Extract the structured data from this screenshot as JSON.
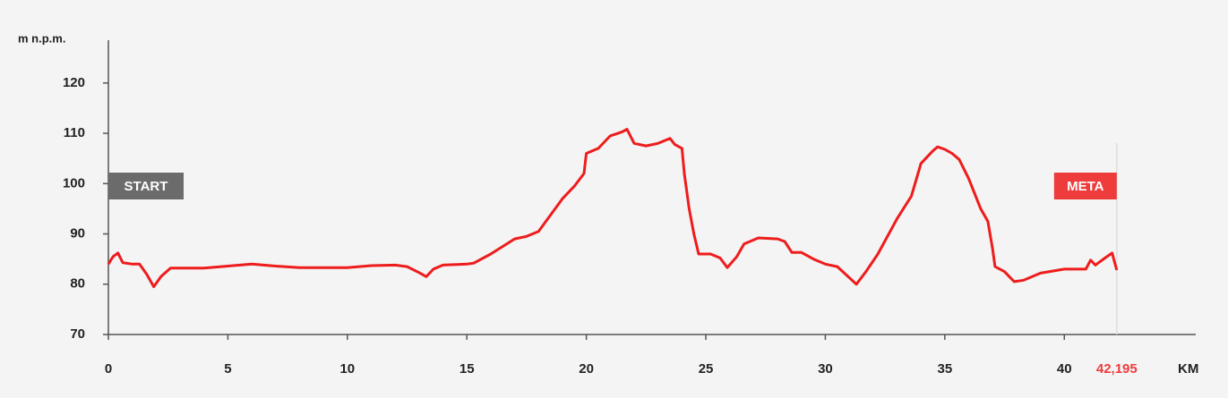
{
  "chart_data": {
    "type": "line",
    "y_label": "m n.p.m.",
    "x_label": "KM",
    "start_label": "START",
    "finish_label": "META",
    "start_color": "#6b6b6b",
    "highlight_color": "#ee3b3b",
    "xlim": [
      0,
      45.5
    ],
    "ylim": [
      70,
      128.5
    ],
    "xticks": [
      0,
      5,
      10,
      15,
      20,
      25,
      30,
      35,
      40,
      {
        "value": 42.195,
        "label": "42,195"
      }
    ],
    "yticks": [
      70,
      80,
      90,
      100,
      110,
      120
    ],
    "series": [
      {
        "color": "#ee1c1c",
        "x": [
          0,
          0.2,
          0.4,
          0.6,
          1.0,
          1.3,
          1.6,
          1.9,
          2.2,
          2.6,
          3,
          4,
          5,
          6,
          7,
          8,
          9,
          10,
          11,
          12,
          12.5,
          13,
          13.3,
          13.6,
          14,
          15,
          15.3,
          16,
          17,
          17.5,
          18,
          19,
          19.5,
          19.9,
          20,
          20.5,
          21,
          21.5,
          21.7,
          22,
          22.5,
          23,
          23.5,
          23.7,
          24,
          24.1,
          24.3,
          24.5,
          24.7,
          25.2,
          25.6,
          25.9,
          26.3,
          26.6,
          27.2,
          28,
          28.3,
          28.6,
          29,
          29.5,
          30,
          30.5,
          31,
          31.3,
          31.7,
          32.2,
          33,
          33.6,
          34,
          34.5,
          34.7,
          35,
          35.3,
          35.6,
          36,
          36.5,
          36.8,
          37,
          37.1,
          37.5,
          37.9,
          38.3,
          39,
          40,
          40.5,
          40.9,
          41.1,
          41.3,
          41.7,
          42,
          42.195
        ],
        "values": [
          84,
          85.5,
          86.2,
          84.3,
          84,
          84,
          82,
          79.5,
          81.5,
          83.2,
          83.2,
          83.2,
          83.6,
          84,
          83.6,
          83.3,
          83.3,
          83.3,
          83.7,
          83.8,
          83.5,
          82.3,
          81.5,
          83,
          83.8,
          84,
          84.2,
          86,
          89,
          89.5,
          90.5,
          97,
          99.5,
          102,
          106,
          107,
          109.5,
          110.3,
          110.8,
          108,
          107.5,
          108,
          109,
          107.8,
          107,
          102,
          95,
          90,
          86,
          86,
          85.2,
          83.3,
          85.5,
          88,
          89.2,
          89,
          88.5,
          86.3,
          86.3,
          85,
          84,
          83.5,
          81.3,
          80,
          82.5,
          86,
          93,
          97.5,
          104,
          106.5,
          107.3,
          106.8,
          106,
          104.8,
          101,
          95,
          92.5,
          87,
          83.5,
          82.5,
          80.5,
          80.8,
          82.2,
          83,
          83,
          83,
          84.8,
          83.8,
          85.2,
          86.2,
          82.8
        ]
      }
    ]
  }
}
